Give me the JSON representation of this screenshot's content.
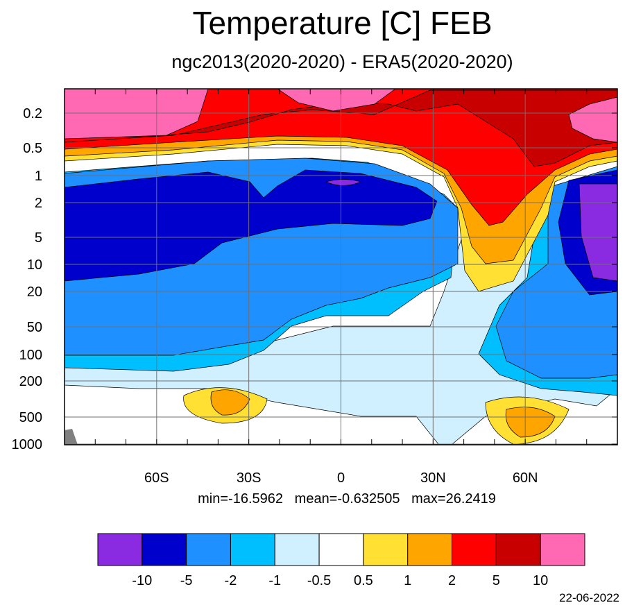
{
  "title": "Temperature [C] FEB",
  "subtitle": "ngc2013(2020-2020) - ERA5(2020-2020)",
  "stats": "min=-16.5962   mean=-0.632505   max=26.2419",
  "date": "22-06-2022",
  "chart_data": {
    "type": "heatmap",
    "title": "Temperature [C] FEB",
    "subtitle": "ngc2013(2020-2020) - ERA5(2020-2020)",
    "x_tick_labels": [
      "60S",
      "30S",
      "0",
      "30N",
      "60N"
    ],
    "x_tick_values": [
      -60,
      -30,
      0,
      30,
      60
    ],
    "xlim": [
      -90,
      90
    ],
    "y_tick_labels": [
      "0.2",
      "0.5",
      "1",
      "2",
      "5",
      "10",
      "20",
      "50",
      "100",
      "200",
      "500",
      "1000"
    ],
    "y_tick_values": [
      0.2,
      0.5,
      1,
      2,
      5,
      10,
      20,
      50,
      100,
      200,
      500,
      1000
    ],
    "y_scale": "log",
    "y_reversed": true,
    "min": -16.5962,
    "mean": -0.632505,
    "max": 26.2419,
    "colorbar": {
      "levels": [
        "-10",
        "-5",
        "-2",
        "-1",
        "-0.5",
        "0.5",
        "1",
        "2",
        "5",
        "10"
      ],
      "colors": [
        "#8a2be2",
        "#0000cd",
        "#1e90ff",
        "#00bfff",
        "#d0f0ff",
        "#ffffff",
        "#ffe033",
        "#ffa500",
        "#ff0000",
        "#c80000",
        "#ff69b4"
      ]
    }
  }
}
